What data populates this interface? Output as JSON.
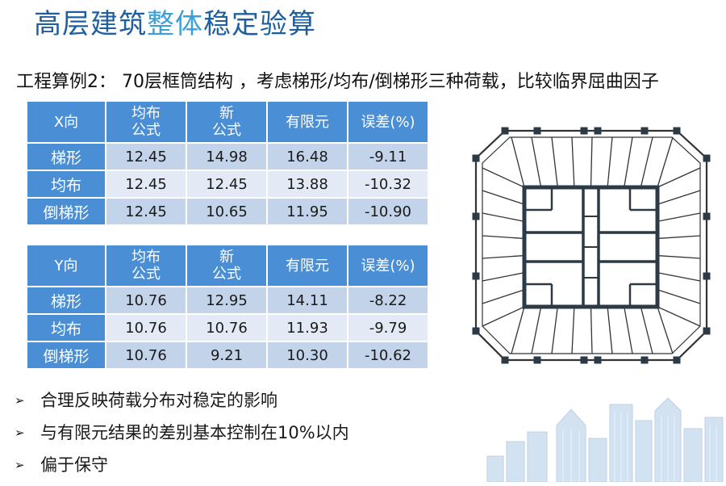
{
  "title": {
    "part1": "高层建筑",
    "highlight": "整体",
    "part2": "稳定验算"
  },
  "subtitle": "工程算例2： 70层框筒结构 ，考虑梯形/均布/倒梯形三种荷载，比较临界屈曲因子",
  "table_x": {
    "corner": "X向",
    "headers": [
      "均布\n公式",
      "新\n公式",
      "有限元",
      "误差(%)"
    ],
    "rows": [
      {
        "label": "梯形",
        "values": [
          "12.45",
          "14.98",
          "16.48",
          "-9.11"
        ]
      },
      {
        "label": "均布",
        "values": [
          "12.45",
          "12.45",
          "13.88",
          "-10.32"
        ]
      },
      {
        "label": "倒梯形",
        "values": [
          "12.45",
          "10.65",
          "11.95",
          "-10.90"
        ]
      }
    ]
  },
  "table_y": {
    "corner": "Y向",
    "headers": [
      "均布\n公式",
      "新\n公式",
      "有限元",
      "误差(%)"
    ],
    "rows": [
      {
        "label": "梯形",
        "values": [
          "10.76",
          "12.95",
          "14.11",
          "-8.22"
        ]
      },
      {
        "label": "均布",
        "values": [
          "10.76",
          "10.76",
          "11.93",
          "-9.79"
        ]
      },
      {
        "label": "倒梯形",
        "values": [
          "10.76",
          "9.21",
          "10.30",
          "-10.62"
        ]
      }
    ]
  },
  "bullets": [
    "合理反映荷载分布对稳定的影响",
    "与有限元结果的差别基本控制在10%以内",
    "偏于保守"
  ],
  "colors": {
    "title": "#1f5fa0",
    "title_highlight": "#3aa0dc",
    "table_header": "#4a8fd6",
    "row_dark": "#c3d3e9",
    "row_light": "#e3eaf5",
    "plan_stroke": "#333333"
  }
}
